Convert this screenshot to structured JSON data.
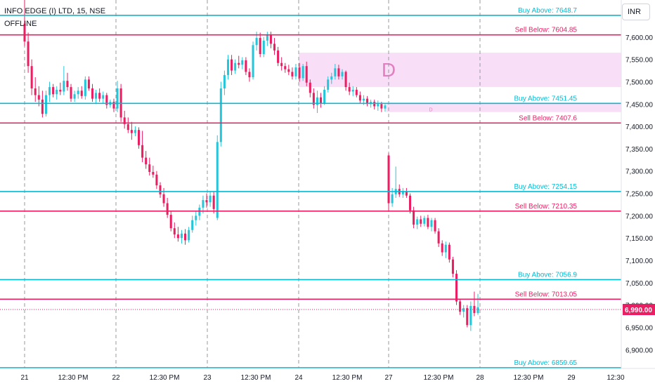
{
  "header": {
    "symbol_line": "INFO EDGE (I) LTD, 15, NSE",
    "status": "OFFLINE"
  },
  "currency_button": "INR",
  "colors": {
    "up": "#26c6da",
    "down": "#e91e63",
    "buy_line": "#00bcd4",
    "sell_line": "#e91e63",
    "zone_fill": "#f8dff7",
    "zone_label": "#e37fc0",
    "axis_text": "#131722",
    "price_tag_bg": "#e91e63"
  },
  "chart_data": {
    "type": "candlestick",
    "ylim": [
      6858,
      7683
    ],
    "y_ticks": [
      6900,
      6950,
      7000,
      7050,
      7100,
      7150,
      7200,
      7250,
      7300,
      7350,
      7400,
      7450,
      7500,
      7550,
      7600
    ],
    "y_tick_labels": [
      "6,900.00",
      "6,950.00",
      "7,000.00",
      "7,050.00",
      "7,100.00",
      "7,150.00",
      "7,200.00",
      "7,250.00",
      "7,300.00",
      "7,350.00",
      "7,400.00",
      "7,450.00",
      "7,500.00",
      "7,550.00",
      "7,600.00"
    ],
    "x_labels": [
      "21",
      "12:30 PM",
      "22",
      "12:30 PM",
      "23",
      "12:30 PM",
      "24",
      "12:30 PM",
      "27",
      "12:30 PM",
      "28",
      "12:30 PM",
      "29",
      "12:30"
    ],
    "day_separators": [
      "21",
      "22",
      "23",
      "24",
      "27",
      "28"
    ],
    "last_price": 6990.0,
    "last_price_label": "6,990.00",
    "levels": [
      {
        "label": "Buy Above: 7648.7",
        "value": 7648.7,
        "kind": "buy"
      },
      {
        "label": "Sell Below: 7604.85",
        "value": 7604.85,
        "kind": "sell"
      },
      {
        "label": "Buy Above: 7451.45",
        "value": 7451.45,
        "kind": "buy"
      },
      {
        "label": "Sell Below: 7407.6",
        "value": 7407.6,
        "kind": "sell"
      },
      {
        "label": "Buy Above: 7254.15",
        "value": 7254.15,
        "kind": "buy"
      },
      {
        "label": "Sell Below: 7210.35",
        "value": 7210.35,
        "kind": "sell"
      },
      {
        "label": "Buy Above: 7056.9",
        "value": 7056.9,
        "kind": "buy"
      },
      {
        "label": "Sell Below: 7013.05",
        "value": 7013.05,
        "kind": "sell"
      },
      {
        "label": "Buy Above: 6859.65",
        "value": 6859.65,
        "kind": "buy"
      }
    ],
    "zones": [
      {
        "label": "D",
        "top": 7565,
        "bottom": 7488,
        "start": "24",
        "size": "large"
      },
      {
        "label": "D",
        "top": 7453,
        "bottom": 7432,
        "start": "27",
        "size": "small"
      }
    ],
    "candles": [
      {
        "o": 7630,
        "h": 7700,
        "l": 7580,
        "c": 7590
      },
      {
        "o": 7590,
        "h": 7610,
        "l": 7520,
        "c": 7535
      },
      {
        "o": 7535,
        "h": 7550,
        "l": 7470,
        "c": 7485
      },
      {
        "o": 7485,
        "h": 7510,
        "l": 7455,
        "c": 7470
      },
      {
        "o": 7470,
        "h": 7490,
        "l": 7445,
        "c": 7460
      },
      {
        "o": 7460,
        "h": 7480,
        "l": 7420,
        "c": 7428
      },
      {
        "o": 7428,
        "h": 7480,
        "l": 7422,
        "c": 7470
      },
      {
        "o": 7470,
        "h": 7500,
        "l": 7455,
        "c": 7488
      },
      {
        "o": 7488,
        "h": 7495,
        "l": 7465,
        "c": 7472
      },
      {
        "o": 7472,
        "h": 7490,
        "l": 7460,
        "c": 7482
      },
      {
        "o": 7482,
        "h": 7498,
        "l": 7470,
        "c": 7478
      },
      {
        "o": 7478,
        "h": 7535,
        "l": 7470,
        "c": 7502
      },
      {
        "o": 7502,
        "h": 7520,
        "l": 7480,
        "c": 7488
      },
      {
        "o": 7488,
        "h": 7495,
        "l": 7455,
        "c": 7462
      },
      {
        "o": 7462,
        "h": 7480,
        "l": 7455,
        "c": 7472
      },
      {
        "o": 7472,
        "h": 7488,
        "l": 7462,
        "c": 7480
      },
      {
        "o": 7480,
        "h": 7490,
        "l": 7462,
        "c": 7468
      },
      {
        "o": 7468,
        "h": 7512,
        "l": 7460,
        "c": 7505
      },
      {
        "o": 7505,
        "h": 7512,
        "l": 7480,
        "c": 7485
      },
      {
        "o": 7485,
        "h": 7495,
        "l": 7455,
        "c": 7462
      },
      {
        "o": 7462,
        "h": 7482,
        "l": 7450,
        "c": 7475
      },
      {
        "o": 7475,
        "h": 7485,
        "l": 7455,
        "c": 7462
      },
      {
        "o": 7462,
        "h": 7478,
        "l": 7452,
        "c": 7470
      },
      {
        "o": 7470,
        "h": 7475,
        "l": 7440,
        "c": 7448
      },
      {
        "o": 7448,
        "h": 7460,
        "l": 7442,
        "c": 7455
      },
      {
        "o": 7455,
        "h": 7462,
        "l": 7432,
        "c": 7440
      },
      {
        "o": 7440,
        "h": 7502,
        "l": 7432,
        "c": 7485
      },
      {
        "o": 7485,
        "h": 7495,
        "l": 7410,
        "c": 7420
      },
      {
        "o": 7420,
        "h": 7435,
        "l": 7395,
        "c": 7405
      },
      {
        "o": 7405,
        "h": 7420,
        "l": 7385,
        "c": 7392
      },
      {
        "o": 7392,
        "h": 7410,
        "l": 7370,
        "c": 7385
      },
      {
        "o": 7385,
        "h": 7400,
        "l": 7378,
        "c": 7392
      },
      {
        "o": 7392,
        "h": 7398,
        "l": 7350,
        "c": 7358
      },
      {
        "o": 7358,
        "h": 7390,
        "l": 7320,
        "c": 7330
      },
      {
        "o": 7330,
        "h": 7345,
        "l": 7305,
        "c": 7315
      },
      {
        "o": 7315,
        "h": 7330,
        "l": 7290,
        "c": 7298
      },
      {
        "o": 7298,
        "h": 7312,
        "l": 7285,
        "c": 7292
      },
      {
        "o": 7292,
        "h": 7300,
        "l": 7260,
        "c": 7268
      },
      {
        "o": 7268,
        "h": 7275,
        "l": 7240,
        "c": 7248
      },
      {
        "o": 7248,
        "h": 7262,
        "l": 7220,
        "c": 7228
      },
      {
        "o": 7228,
        "h": 7240,
        "l": 7195,
        "c": 7202
      },
      {
        "o": 7202,
        "h": 7210,
        "l": 7165,
        "c": 7172
      },
      {
        "o": 7172,
        "h": 7185,
        "l": 7150,
        "c": 7158
      },
      {
        "o": 7158,
        "h": 7175,
        "l": 7142,
        "c": 7150
      },
      {
        "o": 7150,
        "h": 7168,
        "l": 7138,
        "c": 7160
      },
      {
        "o": 7160,
        "h": 7170,
        "l": 7135,
        "c": 7145
      },
      {
        "o": 7145,
        "h": 7175,
        "l": 7140,
        "c": 7168
      },
      {
        "o": 7168,
        "h": 7200,
        "l": 7162,
        "c": 7190
      },
      {
        "o": 7190,
        "h": 7210,
        "l": 7178,
        "c": 7200
      },
      {
        "o": 7200,
        "h": 7225,
        "l": 7190,
        "c": 7218
      },
      {
        "o": 7218,
        "h": 7245,
        "l": 7205,
        "c": 7235
      },
      {
        "o": 7235,
        "h": 7250,
        "l": 7218,
        "c": 7230
      },
      {
        "o": 7230,
        "h": 7255,
        "l": 7220,
        "c": 7245
      },
      {
        "o": 7245,
        "h": 7255,
        "l": 7205,
        "c": 7215
      },
      {
        "o": 7195,
        "h": 7380,
        "l": 7190,
        "c": 7365
      },
      {
        "o": 7365,
        "h": 7500,
        "l": 7355,
        "c": 7485
      },
      {
        "o": 7485,
        "h": 7525,
        "l": 7470,
        "c": 7515
      },
      {
        "o": 7515,
        "h": 7560,
        "l": 7505,
        "c": 7550
      },
      {
        "o": 7550,
        "h": 7560,
        "l": 7515,
        "c": 7525
      },
      {
        "o": 7525,
        "h": 7550,
        "l": 7518,
        "c": 7542
      },
      {
        "o": 7542,
        "h": 7558,
        "l": 7530,
        "c": 7538
      },
      {
        "o": 7538,
        "h": 7555,
        "l": 7528,
        "c": 7548
      },
      {
        "o": 7548,
        "h": 7555,
        "l": 7515,
        "c": 7522
      },
      {
        "o": 7522,
        "h": 7530,
        "l": 7500,
        "c": 7510
      },
      {
        "o": 7510,
        "h": 7590,
        "l": 7505,
        "c": 7582
      },
      {
        "o": 7582,
        "h": 7612,
        "l": 7570,
        "c": 7598
      },
      {
        "o": 7598,
        "h": 7610,
        "l": 7555,
        "c": 7562
      },
      {
        "o": 7562,
        "h": 7600,
        "l": 7555,
        "c": 7592
      },
      {
        "o": 7592,
        "h": 7612,
        "l": 7580,
        "c": 7605
      },
      {
        "o": 7605,
        "h": 7612,
        "l": 7575,
        "c": 7585
      },
      {
        "o": 7585,
        "h": 7598,
        "l": 7560,
        "c": 7570
      },
      {
        "o": 7570,
        "h": 7578,
        "l": 7535,
        "c": 7542
      },
      {
        "o": 7542,
        "h": 7555,
        "l": 7525,
        "c": 7535
      },
      {
        "o": 7535,
        "h": 7542,
        "l": 7520,
        "c": 7528
      },
      {
        "o": 7528,
        "h": 7538,
        "l": 7515,
        "c": 7522
      },
      {
        "o": 7522,
        "h": 7532,
        "l": 7505,
        "c": 7512
      },
      {
        "o": 7512,
        "h": 7540,
        "l": 7505,
        "c": 7532
      },
      {
        "o": 7532,
        "h": 7542,
        "l": 7500,
        "c": 7508
      },
      {
        "o": 7508,
        "h": 7540,
        "l": 7502,
        "c": 7535
      },
      {
        "o": 7535,
        "h": 7545,
        "l": 7490,
        "c": 7498
      },
      {
        "o": 7498,
        "h": 7505,
        "l": 7465,
        "c": 7475
      },
      {
        "o": 7475,
        "h": 7485,
        "l": 7440,
        "c": 7448
      },
      {
        "o": 7448,
        "h": 7480,
        "l": 7430,
        "c": 7465
      },
      {
        "o": 7465,
        "h": 7475,
        "l": 7442,
        "c": 7452
      },
      {
        "o": 7452,
        "h": 7490,
        "l": 7448,
        "c": 7482
      },
      {
        "o": 7482,
        "h": 7512,
        "l": 7476,
        "c": 7505
      },
      {
        "o": 7505,
        "h": 7520,
        "l": 7495,
        "c": 7512
      },
      {
        "o": 7512,
        "h": 7540,
        "l": 7505,
        "c": 7530
      },
      {
        "o": 7530,
        "h": 7538,
        "l": 7505,
        "c": 7512
      },
      {
        "o": 7512,
        "h": 7528,
        "l": 7505,
        "c": 7522
      },
      {
        "o": 7522,
        "h": 7525,
        "l": 7480,
        "c": 7488
      },
      {
        "o": 7488,
        "h": 7498,
        "l": 7470,
        "c": 7478
      },
      {
        "o": 7478,
        "h": 7490,
        "l": 7468,
        "c": 7482
      },
      {
        "o": 7482,
        "h": 7488,
        "l": 7465,
        "c": 7470
      },
      {
        "o": 7470,
        "h": 7478,
        "l": 7452,
        "c": 7458
      },
      {
        "o": 7458,
        "h": 7470,
        "l": 7448,
        "c": 7462
      },
      {
        "o": 7462,
        "h": 7468,
        "l": 7445,
        "c": 7450
      },
      {
        "o": 7450,
        "h": 7460,
        "l": 7442,
        "c": 7455
      },
      {
        "o": 7455,
        "h": 7460,
        "l": 7438,
        "c": 7445
      },
      {
        "o": 7445,
        "h": 7458,
        "l": 7435,
        "c": 7450
      },
      {
        "o": 7450,
        "h": 7455,
        "l": 7432,
        "c": 7440
      },
      {
        "o": 7440,
        "h": 7452,
        "l": 7433,
        "c": 7447
      },
      {
        "o": 7335,
        "h": 7340,
        "l": 7210,
        "c": 7228
      },
      {
        "o": 7228,
        "h": 7262,
        "l": 7220,
        "c": 7248
      },
      {
        "o": 7248,
        "h": 7310,
        "l": 7240,
        "c": 7260
      },
      {
        "o": 7260,
        "h": 7270,
        "l": 7242,
        "c": 7248
      },
      {
        "o": 7248,
        "h": 7262,
        "l": 7240,
        "c": 7255
      },
      {
        "o": 7255,
        "h": 7262,
        "l": 7240,
        "c": 7245
      },
      {
        "o": 7245,
        "h": 7250,
        "l": 7205,
        "c": 7212
      },
      {
        "o": 7212,
        "h": 7220,
        "l": 7172,
        "c": 7180
      },
      {
        "o": 7180,
        "h": 7198,
        "l": 7170,
        "c": 7192
      },
      {
        "o": 7192,
        "h": 7200,
        "l": 7175,
        "c": 7182
      },
      {
        "o": 7182,
        "h": 7200,
        "l": 7176,
        "c": 7195
      },
      {
        "o": 7195,
        "h": 7202,
        "l": 7170,
        "c": 7175
      },
      {
        "o": 7175,
        "h": 7195,
        "l": 7165,
        "c": 7190
      },
      {
        "o": 7190,
        "h": 7195,
        "l": 7160,
        "c": 7165
      },
      {
        "o": 7165,
        "h": 7172,
        "l": 7130,
        "c": 7138
      },
      {
        "o": 7138,
        "h": 7145,
        "l": 7110,
        "c": 7118
      },
      {
        "o": 7118,
        "h": 7142,
        "l": 7105,
        "c": 7135
      },
      {
        "o": 7135,
        "h": 7140,
        "l": 7095,
        "c": 7102
      },
      {
        "o": 7102,
        "h": 7108,
        "l": 7062,
        "c": 7070
      },
      {
        "o": 7070,
        "h": 7078,
        "l": 7000,
        "c": 7008
      },
      {
        "o": 7008,
        "h": 7012,
        "l": 6978,
        "c": 6985
      },
      {
        "o": 6985,
        "h": 7000,
        "l": 6972,
        "c": 6993
      },
      {
        "o": 6993,
        "h": 7000,
        "l": 6950,
        "c": 6955
      },
      {
        "o": 6955,
        "h": 7008,
        "l": 6942,
        "c": 6998
      },
      {
        "o": 6998,
        "h": 7030,
        "l": 6975,
        "c": 6982
      },
      {
        "o": 6982,
        "h": 7025,
        "l": 6978,
        "c": 6995
      }
    ]
  }
}
